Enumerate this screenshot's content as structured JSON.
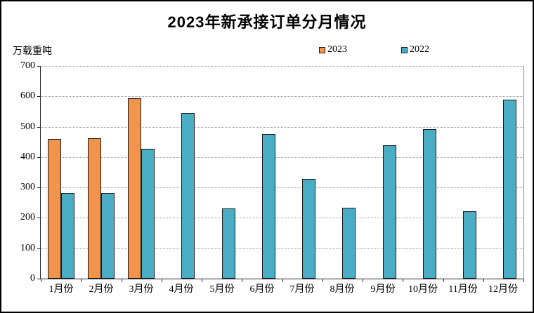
{
  "chart_data": {
    "type": "bar",
    "title": "2023年新承接订单分月情况",
    "ylabel": "万载重吨",
    "categories": [
      "1月份",
      "2月份",
      "3月份",
      "4月份",
      "5月份",
      "6月份",
      "7月份",
      "8月份",
      "9月份",
      "10月份",
      "11月份",
      "12月份"
    ],
    "series": [
      {
        "name": "2023",
        "color": "#F2944C",
        "values": [
          460,
          462,
          593,
          null,
          null,
          null,
          null,
          null,
          null,
          null,
          null,
          null
        ]
      },
      {
        "name": "2022",
        "color": "#4BACC6",
        "values": [
          281,
          283,
          428,
          546,
          230,
          477,
          327,
          233,
          440,
          492,
          222,
          590
        ]
      }
    ],
    "ylim": [
      0,
      700
    ],
    "ytick_step": 100,
    "grid": "horizontal-dotted",
    "legend_position": "top-center"
  },
  "colors": {
    "background": "#FFFFFF",
    "outer_border": "#000000",
    "bar_border": "#1A1A1A",
    "gridline": "#999999",
    "axis": "#262626"
  }
}
